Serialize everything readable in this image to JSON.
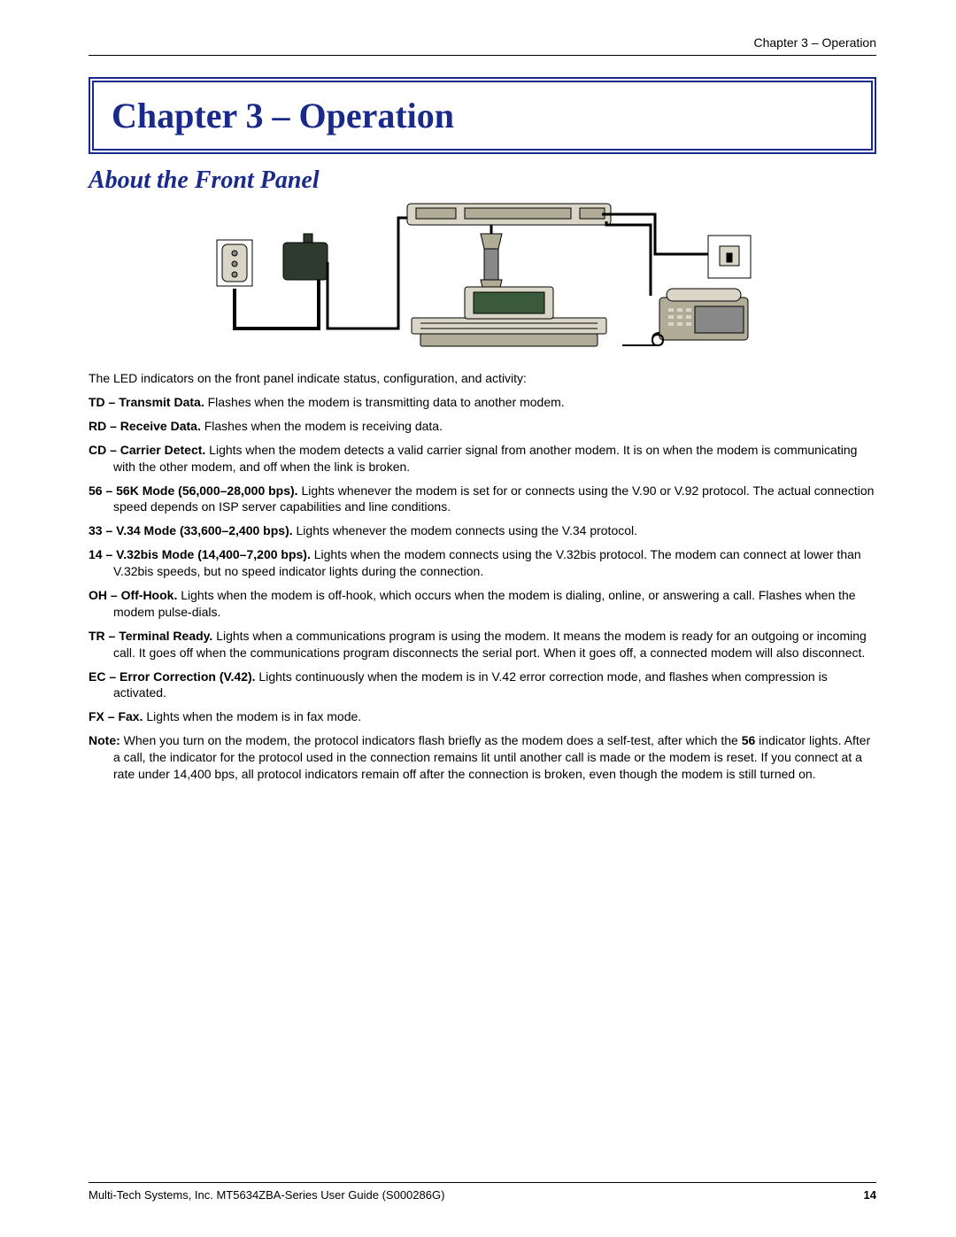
{
  "header": {
    "right": "Chapter 3 – Operation"
  },
  "chapter": {
    "title": "Chapter 3 – Operation"
  },
  "section": {
    "title": "About the Front Panel"
  },
  "intro": "The LED indicators on the front panel indicate status, configuration, and activity:",
  "defs": [
    {
      "label": "TD – Transmit Data.",
      "text": "  Flashes when the modem is transmitting data to another modem."
    },
    {
      "label": "RD – Receive Data.",
      "text": " Flashes when the modem is receiving data."
    },
    {
      "label": "CD – Carrier Detect.",
      "text": " Lights when the modem detects a valid carrier signal from another modem. It is on when the modem is communicating with the other modem, and off when the link is broken."
    },
    {
      "label": "56 – 56K Mode (56,000–28,000 bps).",
      "text": " Lights whenever the modem is set for or connects using the V.90 or V.92 protocol. The actual connection speed depends on ISP server capabilities and line conditions."
    },
    {
      "label": "33 – V.34 Mode (33,600–2,400 bps).",
      "text": " Lights whenever the modem connects using the V.34 protocol."
    },
    {
      "label": "14 – V.32bis Mode (14,400–7,200 bps).",
      "text": " Lights when the modem connects using the V.32bis protocol. The modem can connect at lower than V.32bis speeds, but no speed indicator lights during the connection."
    },
    {
      "label": "OH – Off-Hook.",
      "text": " Lights when the modem is off-hook, which occurs when the modem is dialing, online, or answering a call. Flashes when the modem pulse-dials."
    },
    {
      "label": "TR – Terminal Ready.",
      "text": " Lights when a communications program is using the modem. It means the modem is ready for an outgoing or incoming call. It goes off when the communications program disconnects the serial port. When it goes off, a connected modem will also disconnect."
    },
    {
      "label": "EC – Error Correction (V.42).",
      "text": " Lights continuously when the modem is in V.42 error correction mode, and flashes when compression is activated."
    },
    {
      "label": "FX – Fax.",
      "text": " Lights when the modem is in fax mode."
    }
  ],
  "note": {
    "label": "Note:",
    "text_pre": " When you turn on the modem, the protocol indicators flash briefly as the modem does a self-test, after which the ",
    "bold_in": "56",
    "text_post": " indicator lights. After a call, the indicator for the protocol used in the connection remains lit until another call is made or the modem is reset. If you connect at a rate under 14,400 bps, all protocol indicators remain off after the connection is broken, even though the modem is still turned on."
  },
  "footer": {
    "left": "Multi-Tech Systems, Inc. MT5634ZBA-Series User Guide (S000286G)",
    "page": "14"
  },
  "diagram_colors": {
    "light": "#d9d6c8",
    "mid": "#b0ac98",
    "dark": "#2e3a2e",
    "outline": "#000000"
  }
}
